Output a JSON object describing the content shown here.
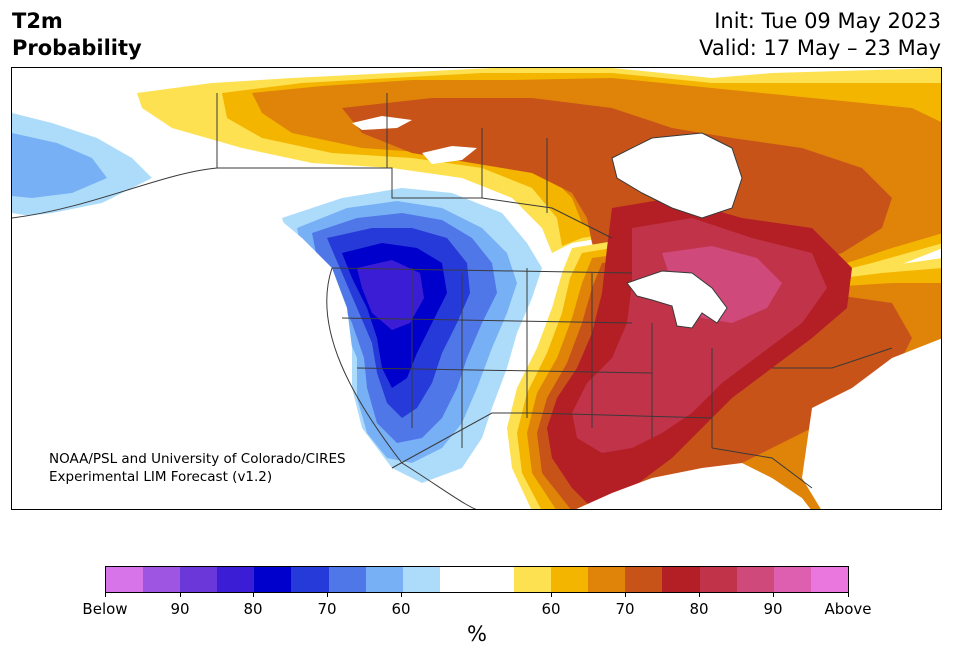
{
  "header": {
    "variable": "T2m",
    "subtitle": "Probability",
    "init": "Init: Tue 09 May 2023",
    "valid": "Valid: 17 May – 23 May"
  },
  "credit": {
    "line1": "NOAA/PSL and University of Colorado/CIRES",
    "line2": "Experimental LIM Forecast (v1.2)"
  },
  "colorbar": {
    "colors": [
      "#d774e9",
      "#9d55e2",
      "#6c37d8",
      "#3b1dd5",
      "#0000cc",
      "#263ad9",
      "#5077e8",
      "#78b0f5",
      "#addcfb",
      "#ffffff",
      "#ffffff",
      "#fee150",
      "#f4b500",
      "#df8409",
      "#c85319",
      "#b31f24",
      "#c13349",
      "#cf497a",
      "#de5fb0",
      "#ea77dd"
    ],
    "ticks": [
      "Below",
      "90",
      "80",
      "70",
      "60",
      "60",
      "70",
      "80",
      "90",
      "Above"
    ],
    "unit": "%"
  },
  "map": {
    "region": "North America",
    "land_color": "#ffffff",
    "border_color": "#3a3a3a"
  }
}
